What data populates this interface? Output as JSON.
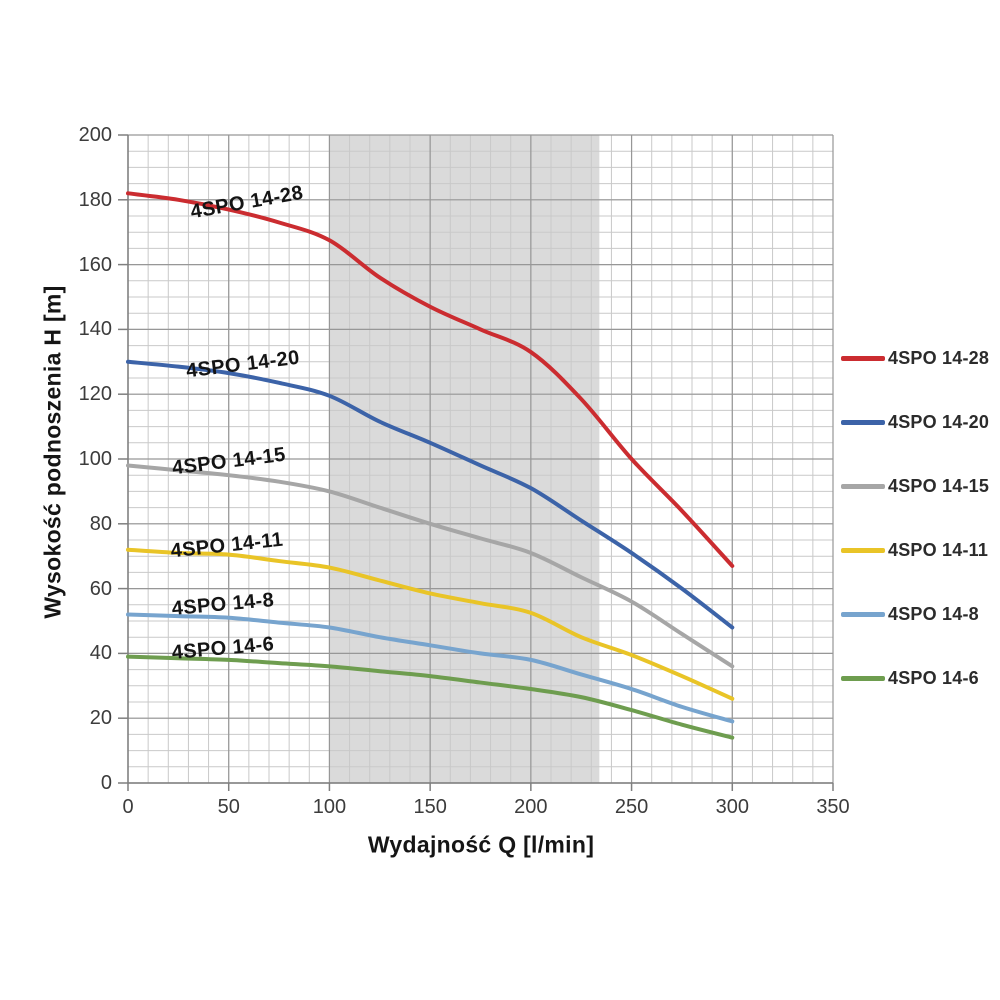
{
  "chart": {
    "y_axis_title": "Wysokość podnoszenia H [m]",
    "x_axis_title": "Wydajność Q [l/min]"
  },
  "chart_data": {
    "type": "line",
    "title": "",
    "xlabel": "Wydajność Q [l/min]",
    "ylabel": "Wysokość podnoszenia H [m]",
    "xlim": [
      0,
      350
    ],
    "ylim": [
      0,
      200
    ],
    "x_ticks": [
      0,
      50,
      100,
      150,
      200,
      250,
      300,
      350
    ],
    "y_ticks": [
      0,
      20,
      40,
      60,
      80,
      100,
      120,
      140,
      160,
      180,
      200
    ],
    "x_minor_step": 10,
    "y_minor_step": 5,
    "grid": "on",
    "legend_position": "right",
    "shaded_region": {
      "x_from": 100,
      "x_to": 234,
      "color": "#dadada"
    },
    "grid_colors": {
      "minor": "#c9c9c9",
      "major": "#979797",
      "axis": "#7f7f7f"
    },
    "x": [
      0,
      25,
      50,
      75,
      100,
      125,
      150,
      175,
      200,
      225,
      250,
      275,
      300
    ],
    "series": [
      {
        "name": "4SPO 14-28",
        "color": "#cb2c30",
        "values": [
          182,
          180,
          177,
          173,
          167.5,
          156,
          147,
          140,
          133,
          118.5,
          100,
          84,
          67
        ],
        "label": {
          "x": 59,
          "y": 179,
          "angle": -10
        }
      },
      {
        "name": "4SPO 14-20",
        "color": "#3c63a8",
        "values": [
          130,
          128.5,
          126.5,
          123.5,
          119.5,
          111.5,
          105,
          98,
          91,
          81,
          71,
          60,
          48
        ],
        "label": {
          "x": 57,
          "y": 129,
          "angle": -7
        }
      },
      {
        "name": "4SPO 14-15",
        "color": "#a6a6a6",
        "values": [
          98,
          96.5,
          95,
          93,
          90,
          85,
          80,
          75.5,
          71,
          63.5,
          56,
          46,
          36
        ],
        "label": {
          "x": 50,
          "y": 99,
          "angle": -7
        }
      },
      {
        "name": "4SPO 14-11",
        "color": "#e9c427",
        "values": [
          72,
          71,
          70.5,
          68.5,
          66.5,
          62.5,
          58.5,
          55.5,
          52.5,
          45,
          39.5,
          33,
          26
        ],
        "label": {
          "x": 49,
          "y": 73,
          "angle": -6
        }
      },
      {
        "name": "4SPO 14-8",
        "color": "#77a4ce",
        "values": [
          52,
          51.5,
          51,
          49.5,
          48,
          45,
          42.5,
          40,
          38,
          33.5,
          29,
          23.5,
          19
        ],
        "label": {
          "x": 47,
          "y": 55,
          "angle": -5
        }
      },
      {
        "name": "4SPO 14-6",
        "color": "#6e9d4f",
        "values": [
          39,
          38.5,
          38,
          37,
          36,
          34.5,
          33,
          31,
          29,
          26.5,
          22.5,
          18,
          14
        ],
        "label": {
          "x": 47,
          "y": 41.5,
          "angle": -5
        }
      }
    ]
  }
}
